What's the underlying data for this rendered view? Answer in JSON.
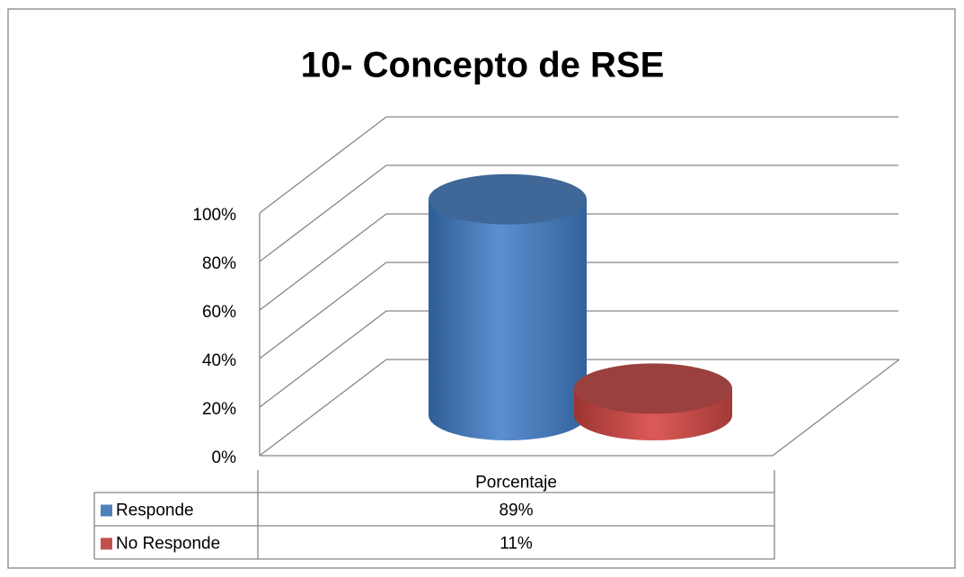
{
  "chart_data": {
    "type": "bar3d",
    "title": "10- Concepto de RSE",
    "categories": [
      "Porcentaje"
    ],
    "series": [
      {
        "name": "Responde",
        "color": "#4f81bd",
        "values": [
          89
        ],
        "value_labels": [
          "89%"
        ]
      },
      {
        "name": "No Responde",
        "color": "#c0504d",
        "values": [
          11
        ],
        "value_labels": [
          "11%"
        ]
      }
    ],
    "ylim": [
      0,
      100
    ],
    "yticks": [
      {
        "value": 0,
        "label": "0%"
      },
      {
        "value": 20,
        "label": "20%"
      },
      {
        "value": 40,
        "label": "40%"
      },
      {
        "value": 60,
        "label": "60%"
      },
      {
        "value": 80,
        "label": "80%"
      },
      {
        "value": 100,
        "label": "100%"
      }
    ],
    "grid": true,
    "data_table": true
  }
}
